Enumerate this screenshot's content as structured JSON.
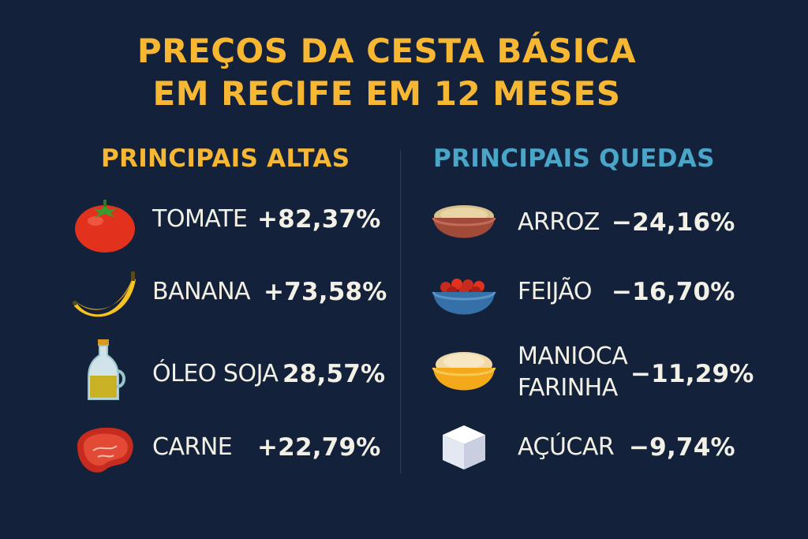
{
  "title": {
    "line1": "PREÇOS DA CESTA BÁSICA",
    "line2": "EM RECIFE EM 12 MESES"
  },
  "altas": {
    "heading": "PRINCIPAIS ALTAS",
    "items": [
      {
        "name": "TOMATE",
        "value": "+82,37%",
        "icon": "tomato-icon"
      },
      {
        "name": "BANANA",
        "value": "+73,58%",
        "icon": "banana-icon"
      },
      {
        "name": "ÓLEO SOJA",
        "value": "28,57%",
        "icon": "oil-bottle-icon"
      },
      {
        "name": "CARNE",
        "value": "+22,79%",
        "icon": "steak-icon"
      }
    ]
  },
  "quedas": {
    "heading": "PRINCIPAIS QUEDAS",
    "items": [
      {
        "name": "ARROZ",
        "value": "−24,16%",
        "icon": "rice-bowl-icon"
      },
      {
        "name": "FEIJÃO",
        "value": "−16,70%",
        "icon": "beans-bowl-icon"
      },
      {
        "name_line1": "MANIOCA",
        "name_line2": "FARINHA",
        "value": "−11,29%",
        "icon": "flour-bowl-icon"
      },
      {
        "name": "AÇÚCAR",
        "value": "−9,74%",
        "icon": "sugar-cube-icon"
      }
    ]
  },
  "colors": {
    "background": "#13223a",
    "accent_up": "#f7b733",
    "accent_down": "#4aa6c8",
    "text": "#f3f0e6"
  }
}
